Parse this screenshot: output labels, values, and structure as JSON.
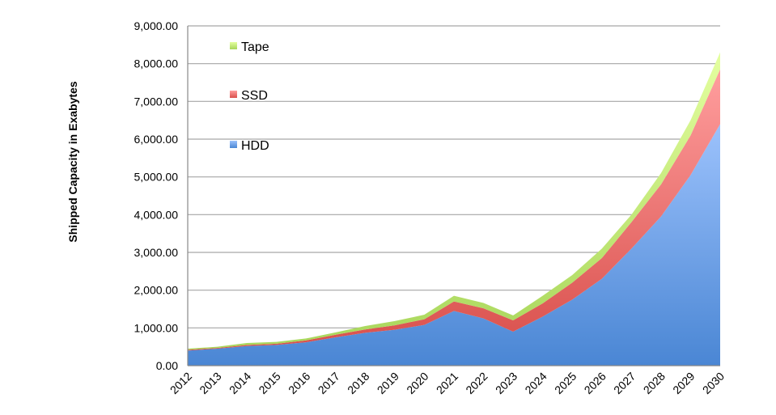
{
  "chart_data": {
    "type": "area",
    "stacked": true,
    "title": "",
    "xlabel": "",
    "ylabel": "Shipped Capacity in Exabytes",
    "ylim": [
      0,
      9000
    ],
    "yticks": [
      "0.00",
      "1,000.00",
      "2,000.00",
      "3,000.00",
      "4,000.00",
      "5,000.00",
      "6,000.00",
      "7,000.00",
      "8,000.00",
      "9,000.00"
    ],
    "grid": true,
    "legend_position": "top-left",
    "categories": [
      "2012",
      "2013",
      "2014",
      "2015",
      "2016",
      "2017",
      "2018",
      "2019",
      "2020",
      "2021",
      "2022",
      "2023",
      "2024",
      "2025",
      "2026",
      "2027",
      "2028",
      "2029",
      "2030"
    ],
    "series": [
      {
        "name": "HDD",
        "color": "#4a86d4",
        "color_light": "#9cc2fc",
        "values": [
          400,
          450,
          520,
          550,
          620,
          750,
          870,
          950,
          1080,
          1450,
          1250,
          900,
          1300,
          1750,
          2300,
          3100,
          3950,
          5050,
          6400
        ]
      },
      {
        "name": "SSD",
        "color": "#d9504c",
        "color_light": "#ff9e9e",
        "values": [
          20,
          20,
          30,
          30,
          50,
          70,
          90,
          120,
          150,
          250,
          270,
          300,
          350,
          450,
          550,
          700,
          850,
          1050,
          1450
        ]
      },
      {
        "name": "Tape",
        "color": "#a8d65a",
        "color_light": "#e4ffa0",
        "values": [
          30,
          30,
          50,
          50,
          50,
          60,
          90,
          110,
          120,
          150,
          140,
          130,
          200,
          200,
          250,
          200,
          300,
          400,
          450
        ]
      }
    ]
  }
}
